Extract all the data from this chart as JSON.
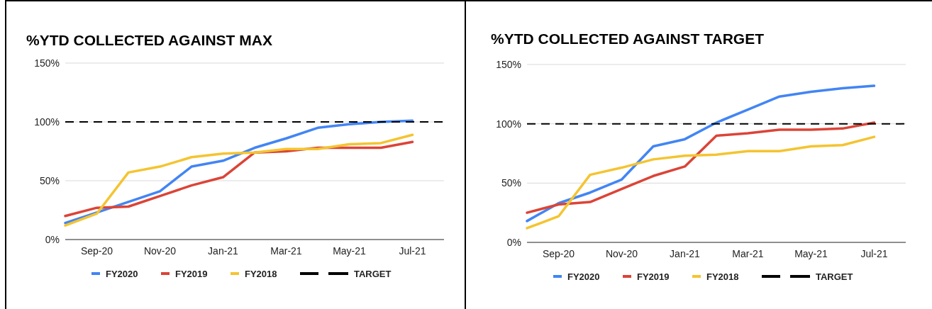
{
  "chart_data": [
    {
      "type": "line",
      "title": "%YTD COLLECTED AGAINST MAX",
      "categories": [
        null,
        "Sep-20",
        null,
        "Nov-20",
        null,
        "Jan-21",
        null,
        "Mar-21",
        null,
        "May-21",
        null,
        "Jul-21"
      ],
      "series": [
        {
          "name": "FY2020",
          "color": "#4285f4",
          "values": [
            14,
            23,
            32,
            41,
            62,
            67,
            78,
            86,
            95,
            98,
            100,
            101
          ]
        },
        {
          "name": "FY2019",
          "color": "#db4437",
          "values": [
            20,
            27,
            28,
            37,
            46,
            53,
            74,
            75,
            78,
            78,
            78,
            83
          ]
        },
        {
          "name": "FY2018",
          "color": "#f4c430",
          "values": [
            12,
            22,
            57,
            62,
            70,
            73,
            74,
            77,
            77,
            81,
            82,
            89
          ]
        }
      ],
      "ylim": [
        0,
        150
      ],
      "yticks": [
        {
          "value": 0,
          "label": "0%"
        },
        {
          "value": 50,
          "label": "50%"
        },
        {
          "value": 100,
          "label": "100%"
        },
        {
          "value": 150,
          "label": "150%"
        }
      ],
      "ref_lines": [
        {
          "axis": "y",
          "value": 100,
          "label": "TARGET",
          "color": "#000000",
          "line_style": "dashed"
        }
      ],
      "grid": "y",
      "legend": "bottom",
      "line_style": "solid",
      "marker": "none"
    },
    {
      "type": "line",
      "title": "%YTD COLLECTED AGAINST TARGET",
      "categories": [
        null,
        "Sep-20",
        null,
        "Nov-20",
        null,
        "Jan-21",
        null,
        "Mar-21",
        null,
        "May-21",
        null,
        "Jul-21"
      ],
      "series": [
        {
          "name": "FY2020",
          "color": "#4285f4",
          "values": [
            18,
            33,
            42,
            53,
            81,
            87,
            101,
            112,
            123,
            127,
            130,
            132
          ]
        },
        {
          "name": "FY2019",
          "color": "#db4437",
          "values": [
            25,
            32,
            34,
            45,
            56,
            64,
            90,
            92,
            95,
            95,
            96,
            101
          ]
        },
        {
          "name": "FY2018",
          "color": "#f4c430",
          "values": [
            12,
            22,
            57,
            63,
            70,
            73,
            74,
            77,
            77,
            81,
            82,
            89
          ]
        }
      ],
      "ylim": [
        0,
        150
      ],
      "yticks": [
        {
          "value": 0,
          "label": "0%"
        },
        {
          "value": 50,
          "label": "50%"
        },
        {
          "value": 100,
          "label": "100%"
        },
        {
          "value": 150,
          "label": "150%"
        }
      ],
      "ref_lines": [
        {
          "axis": "y",
          "value": 100,
          "label": "TARGET",
          "color": "#000000",
          "line_style": "dashed"
        }
      ],
      "grid": "y",
      "legend": "bottom",
      "line_style": "solid",
      "marker": "none"
    }
  ]
}
